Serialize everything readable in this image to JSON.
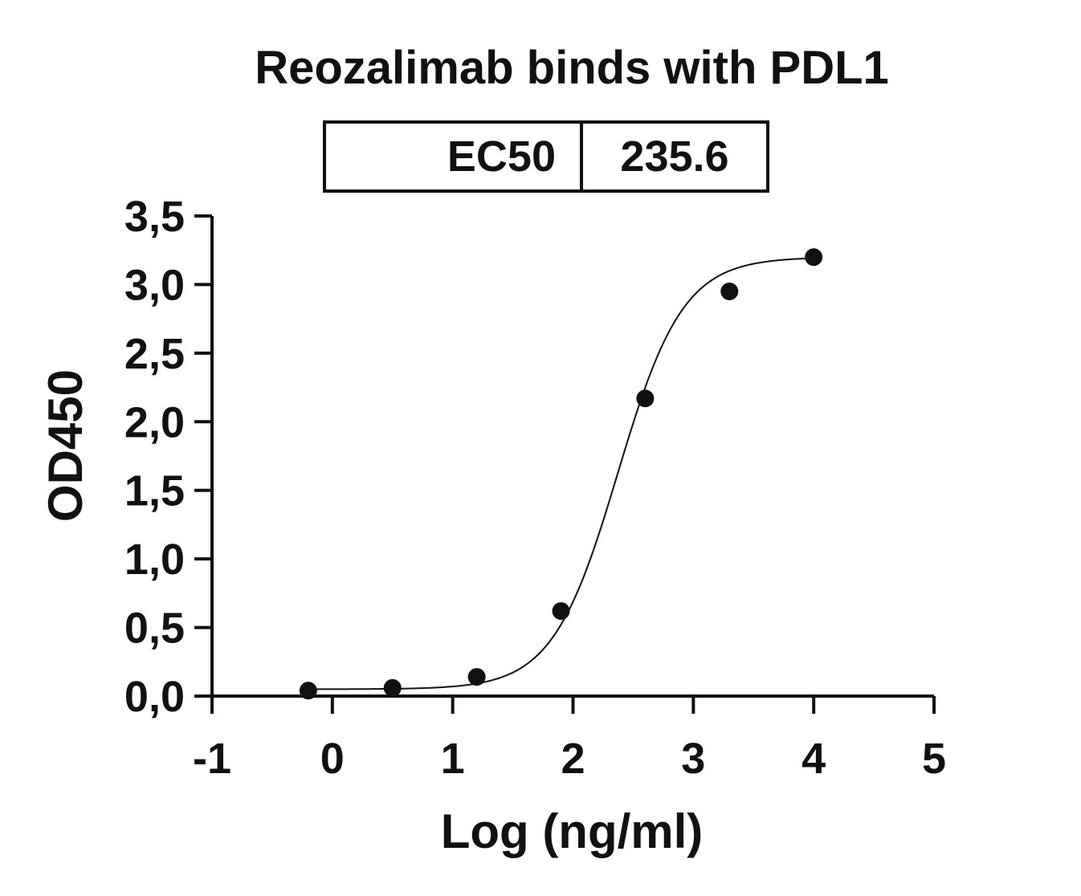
{
  "chart_data": {
    "type": "scatter",
    "title": "Reozalimab binds with PDL1",
    "xlabel": "Log (ng/ml)",
    "ylabel": "OD450",
    "xlim": [
      -1,
      5
    ],
    "ylim": [
      0,
      3.5
    ],
    "x_ticks": [
      {
        "value": -1,
        "label": "-1"
      },
      {
        "value": 0,
        "label": "0"
      },
      {
        "value": 1,
        "label": "1"
      },
      {
        "value": 2,
        "label": "2"
      },
      {
        "value": 3,
        "label": "3"
      },
      {
        "value": 4,
        "label": "4"
      },
      {
        "value": 5,
        "label": "5"
      }
    ],
    "y_ticks": [
      {
        "value": 0,
        "label": "0,0"
      },
      {
        "value": 0.5,
        "label": "0,5"
      },
      {
        "value": 1.0,
        "label": "1,0"
      },
      {
        "value": 1.5,
        "label": "1,5"
      },
      {
        "value": 2.0,
        "label": "2,0"
      },
      {
        "value": 2.5,
        "label": "2,5"
      },
      {
        "value": 3.0,
        "label": "3,0"
      },
      {
        "value": 3.5,
        "label": "3,5"
      }
    ],
    "series": [
      {
        "x": [
          -0.2,
          0.5,
          1.2,
          1.9,
          2.6,
          3.3,
          4.0
        ],
        "y": [
          0.04,
          0.06,
          0.14,
          0.62,
          2.17,
          2.95,
          3.2
        ],
        "fit": {
          "model": "4PL sigmoid",
          "bottom": 0.05,
          "top": 3.2,
          "log_ec50": 2.372,
          "hill_slope": 1.6
        }
      }
    ],
    "results_table": {
      "label": "EC50",
      "value": "235.6"
    },
    "grid": false,
    "legend": "none"
  }
}
